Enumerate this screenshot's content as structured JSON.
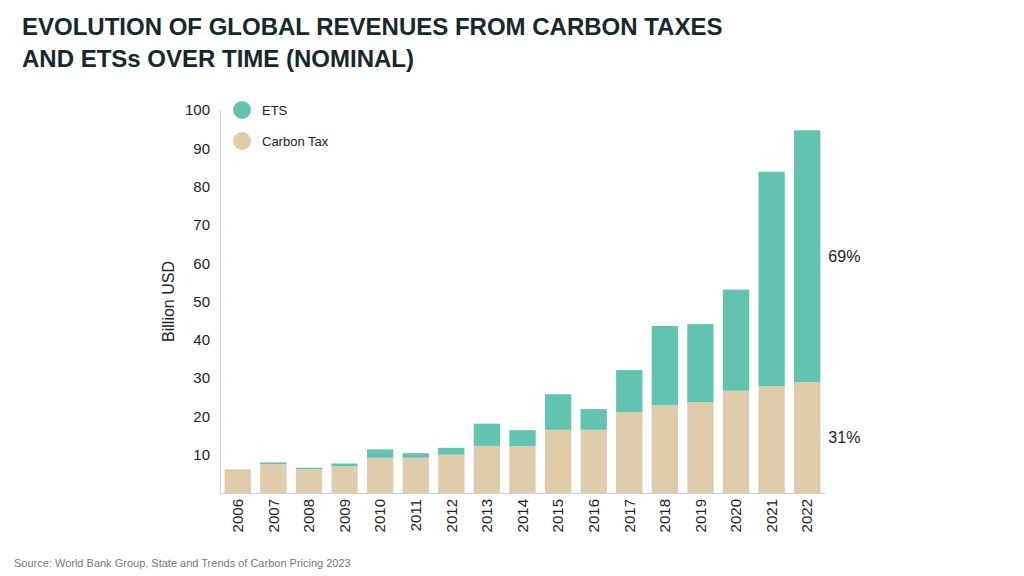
{
  "chart_data": {
    "type": "bar",
    "stacked": true,
    "title": [
      "EVOLUTION OF GLOBAL REVENUES FROM CARBON TAXES",
      "AND ETSs OVER TIME (NOMINAL)"
    ],
    "y_label": "Billion USD",
    "source": "Source: World Bank Group, State and Trends of Carbon Pricing 2023",
    "categories": [
      "2006",
      "2007",
      "2008",
      "2009",
      "2010",
      "2011",
      "2012",
      "2013",
      "2014",
      "2015",
      "2016",
      "2017",
      "2018",
      "2019",
      "2020",
      "2021",
      "2022"
    ],
    "series": [
      {
        "name": "Carbon Tax",
        "color": "#dfccab",
        "values": [
          6.2,
          7.5,
          6.2,
          7.0,
          9.2,
          9.2,
          10.0,
          12.3,
          12.2,
          16.5,
          16.5,
          21.1,
          22.9,
          23.7,
          26.7,
          27.9,
          28.9
        ]
      },
      {
        "name": "ETS",
        "color": "#62c4b0",
        "values": [
          0,
          0.5,
          0.4,
          0.7,
          2.2,
          1.2,
          1.8,
          5.8,
          4.2,
          9.3,
          5.4,
          11.0,
          20.7,
          20.4,
          26.4,
          56.0,
          65.8
        ]
      }
    ],
    "annotations": [
      "31%",
      "69%"
    ],
    "ylim": [
      0,
      100
    ],
    "yticks": [
      10,
      20,
      30,
      40,
      50,
      60,
      70,
      80,
      90,
      100
    ],
    "grid": false,
    "legend": "upper left"
  }
}
